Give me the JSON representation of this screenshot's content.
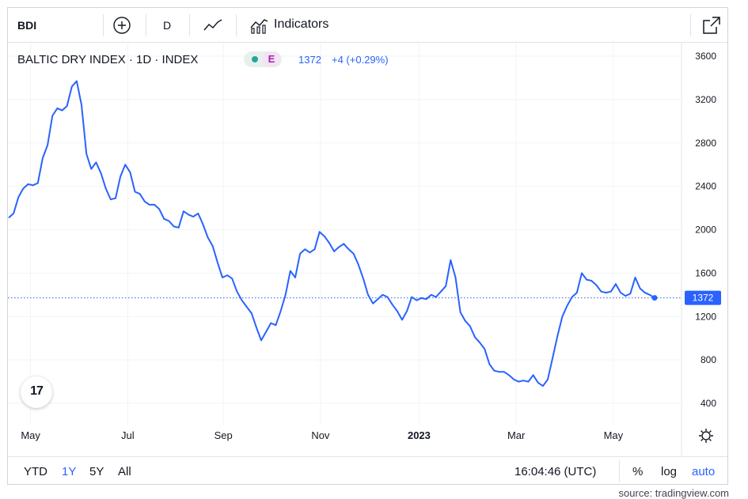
{
  "toolbar": {
    "symbol": "BDI",
    "interval": "D",
    "indicators_label": "Indicators",
    "icons": [
      "plus-circle-icon",
      "line-chart-icon",
      "indicators-icon",
      "popout-icon"
    ]
  },
  "legend": {
    "title": "BALTIC DRY INDEX · 1D · INDEX",
    "badge": "E",
    "price": "1372",
    "change": "+4 (+0.29%)"
  },
  "price_label": "1372",
  "bottom_bar": {
    "ranges": [
      "YTD",
      "1Y",
      "5Y",
      "All"
    ],
    "active_range": "1Y",
    "time": "16:04:46 (UTC)",
    "percent": "%",
    "log": "log",
    "auto": "auto"
  },
  "source": "source: tradingview.com",
  "logo_text": "17",
  "colors": {
    "line": "#2962ff",
    "text": "#131722",
    "grid": "#f0f3fa"
  },
  "chart_data": {
    "type": "line",
    "title": "BALTIC DRY INDEX · 1D · INDEX",
    "xlabel": "",
    "ylabel": "",
    "x_tick_labels": [
      "May",
      "Jul",
      "Sep",
      "Nov",
      "2023",
      "Mar",
      "May"
    ],
    "y_ticks": [
      400,
      800,
      1200,
      1600,
      2000,
      2400,
      2800,
      3200,
      3600
    ],
    "ylim": [
      200,
      3700
    ],
    "grid": true,
    "last_value": 1372,
    "series": [
      {
        "values": [
          2110,
          2150,
          2300,
          2380,
          2420,
          2410,
          2430,
          2660,
          2780,
          3050,
          3120,
          3100,
          3140,
          3320,
          3370,
          3150,
          2700,
          2560,
          2620,
          2520,
          2380,
          2280,
          2290,
          2490,
          2600,
          2530,
          2350,
          2330,
          2260,
          2230,
          2230,
          2190,
          2100,
          2080,
          2030,
          2020,
          2170,
          2140,
          2120,
          2150,
          2050,
          1930,
          1850,
          1700,
          1560,
          1580,
          1550,
          1430,
          1350,
          1290,
          1230,
          1100,
          980,
          1060,
          1140,
          1120,
          1250,
          1400,
          1620,
          1560,
          1780,
          1820,
          1790,
          1820,
          1980,
          1940,
          1880,
          1800,
          1840,
          1870,
          1820,
          1780,
          1680,
          1550,
          1400,
          1320,
          1360,
          1400,
          1380,
          1310,
          1250,
          1170,
          1250,
          1380,
          1350,
          1370,
          1360,
          1400,
          1380,
          1430,
          1480,
          1720,
          1560,
          1240,
          1160,
          1110,
          1010,
          960,
          900,
          760,
          700,
          690,
          690,
          660,
          620,
          600,
          610,
          600,
          660,
          590,
          560,
          620,
          820,
          1020,
          1200,
          1300,
          1380,
          1420,
          1600,
          1540,
          1530,
          1490,
          1430,
          1420,
          1430,
          1500,
          1420,
          1390,
          1410,
          1560,
          1460,
          1420,
          1400,
          1372
        ]
      }
    ]
  }
}
